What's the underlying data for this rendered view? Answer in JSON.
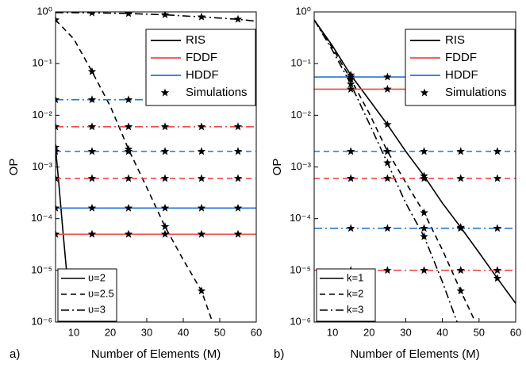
{
  "chart_data": [
    {
      "type": "line",
      "panel_label": "a)",
      "xlabel": "Number of Elements (M)",
      "ylabel": "OP",
      "xlim": [
        5,
        60
      ],
      "xticks": [
        10,
        20,
        30,
        40,
        50,
        60
      ],
      "ylim": [
        1e-06,
        1
      ],
      "yscale": "log",
      "yticks": [
        {
          "value": 1e-06,
          "label": "10⁻⁶"
        },
        {
          "value": 1e-05,
          "label": "10⁻⁵"
        },
        {
          "value": 0.0001,
          "label": "10⁻⁴"
        },
        {
          "value": 0.001,
          "label": "10⁻³"
        },
        {
          "value": 0.01,
          "label": "10⁻²"
        },
        {
          "value": 0.1,
          "label": "10⁻¹"
        },
        {
          "value": 1,
          "label": "10⁰"
        }
      ],
      "legend": {
        "position": "upper right",
        "entries": [
          {
            "label": "RIS",
            "color": "#000000",
            "marker": "line"
          },
          {
            "label": "FDDF",
            "color": "#f04848",
            "marker": "line"
          },
          {
            "label": "HDDF",
            "color": "#2673d9",
            "marker": "line"
          },
          {
            "label": "Simulations",
            "color": "#000000",
            "marker": "star"
          }
        ]
      },
      "style_legend": {
        "position": "lower left",
        "entries": [
          {
            "label": "υ=2",
            "dash": "solid"
          },
          {
            "label": "υ=2.5",
            "dash": "dashed"
          },
          {
            "label": "υ=3",
            "dash": "dashdot"
          }
        ]
      },
      "series": [
        {
          "color": "#000000",
          "dash": "solid",
          "x": [
            5,
            6,
            7,
            8,
            9,
            9.6
          ],
          "values": [
            0.0024,
            0.0004,
            6e-05,
            1e-05,
            2.5e-06,
            1e-06
          ]
        },
        {
          "color": "#000000",
          "dash": "dashed",
          "x": [
            5,
            10,
            15,
            20,
            25,
            30,
            35,
            40,
            45,
            48
          ],
          "values": [
            0.7,
            0.3,
            0.07,
            0.015,
            0.0022,
            0.0004,
            7e-05,
            1.6e-05,
            4e-06,
            1e-06
          ]
        },
        {
          "color": "#000000",
          "dash": "dashdot",
          "x": [
            5,
            15,
            25,
            35,
            45,
            55,
            60
          ],
          "values": [
            0.97,
            0.96,
            0.93,
            0.88,
            0.8,
            0.72,
            0.66
          ]
        },
        {
          "color": "#f04848",
          "dash": "solid",
          "x": [
            5,
            60
          ],
          "values": [
            5e-05,
            5e-05
          ]
        },
        {
          "color": "#f04848",
          "dash": "dashed",
          "x": [
            5,
            60
          ],
          "values": [
            0.0006,
            0.0006
          ]
        },
        {
          "color": "#f04848",
          "dash": "dashdot",
          "x": [
            5,
            60
          ],
          "values": [
            0.006,
            0.006
          ]
        },
        {
          "color": "#2673d9",
          "dash": "solid",
          "x": [
            5,
            60
          ],
          "values": [
            0.00016,
            0.00016
          ]
        },
        {
          "color": "#2673d9",
          "dash": "dashed",
          "x": [
            5,
            60
          ],
          "values": [
            0.002,
            0.002
          ]
        },
        {
          "color": "#2673d9",
          "dash": "dashdot",
          "x": [
            5,
            60
          ],
          "values": [
            0.02,
            0.02
          ]
        },
        {
          "color": "#000000",
          "dash": "none",
          "marker": "star",
          "x": [
            5,
            10
          ],
          "values": [
            0.0024,
            1e-06
          ]
        },
        {
          "color": "#000000",
          "dash": "none",
          "marker": "star",
          "x": [
            5,
            15,
            25,
            35,
            45
          ],
          "values": [
            0.7,
            0.07,
            0.0022,
            7e-05,
            4e-06
          ]
        },
        {
          "color": "#000000",
          "dash": "none",
          "marker": "star",
          "x": [
            15,
            25,
            35,
            45,
            55
          ],
          "values": [
            0.96,
            0.93,
            0.88,
            0.8,
            0.72
          ]
        },
        {
          "color": "#000000",
          "dash": "none",
          "marker": "star",
          "x": [
            5,
            15,
            25,
            35,
            45,
            55
          ],
          "values": [
            5e-05,
            5e-05,
            5e-05,
            5e-05,
            5e-05,
            5e-05
          ]
        },
        {
          "color": "#000000",
          "dash": "none",
          "marker": "star",
          "x": [
            5,
            15,
            25,
            35,
            45,
            55
          ],
          "values": [
            0.0006,
            0.0006,
            0.0006,
            0.0006,
            0.0006,
            0.0006
          ]
        },
        {
          "color": "#000000",
          "dash": "none",
          "marker": "star",
          "x": [
            5,
            15,
            25,
            35,
            45,
            55
          ],
          "values": [
            0.006,
            0.006,
            0.006,
            0.006,
            0.006,
            0.006
          ]
        },
        {
          "color": "#000000",
          "dash": "none",
          "marker": "star",
          "x": [
            5,
            15,
            25,
            35,
            45,
            55
          ],
          "values": [
            0.00016,
            0.00016,
            0.00016,
            0.00016,
            0.00016,
            0.00016
          ]
        },
        {
          "color": "#000000",
          "dash": "none",
          "marker": "star",
          "x": [
            5,
            15,
            25,
            35,
            45,
            55
          ],
          "values": [
            0.002,
            0.002,
            0.002,
            0.002,
            0.002,
            0.002
          ]
        },
        {
          "color": "#000000",
          "dash": "none",
          "marker": "star",
          "x": [
            5,
            15,
            25,
            35,
            45,
            55
          ],
          "values": [
            0.02,
            0.02,
            0.02,
            0.02,
            0.02,
            0.02
          ]
        }
      ]
    },
    {
      "type": "line",
      "panel_label": "b)",
      "xlabel": "Number of Elements (M)",
      "ylabel": "OP",
      "xlim": [
        5,
        60
      ],
      "xticks": [
        10,
        20,
        30,
        40,
        50,
        60
      ],
      "ylim": [
        1e-06,
        1
      ],
      "yscale": "log",
      "yticks": [
        {
          "value": 1e-06,
          "label": "10⁻⁶"
        },
        {
          "value": 1e-05,
          "label": "10⁻⁵"
        },
        {
          "value": 0.0001,
          "label": "10⁻⁴"
        },
        {
          "value": 0.001,
          "label": "10⁻³"
        },
        {
          "value": 0.01,
          "label": "10⁻²"
        },
        {
          "value": 0.1,
          "label": "10⁻¹"
        },
        {
          "value": 1,
          "label": "10⁰"
        }
      ],
      "legend": {
        "position": "upper right",
        "entries": [
          {
            "label": "RIS",
            "color": "#000000",
            "marker": "line"
          },
          {
            "label": "FDDF",
            "color": "#f04848",
            "marker": "line"
          },
          {
            "label": "HDDF",
            "color": "#2673d9",
            "marker": "line"
          },
          {
            "label": "Simulations",
            "color": "#000000",
            "marker": "star"
          }
        ]
      },
      "style_legend": {
        "position": "lower left",
        "entries": [
          {
            "label": "k=1",
            "dash": "solid"
          },
          {
            "label": "k=2",
            "dash": "dashed"
          },
          {
            "label": "k=3",
            "dash": "dashdot"
          }
        ]
      },
      "series": [
        {
          "color": "#000000",
          "dash": "solid",
          "x": [
            5,
            10,
            15,
            20,
            25,
            30,
            35,
            40,
            45,
            50,
            55,
            60
          ],
          "values": [
            0.7,
            0.22,
            0.06,
            0.02,
            0.0066,
            0.002,
            0.00067,
            0.0002,
            6.8e-05,
            2.2e-05,
            7e-06,
            2.3e-06
          ]
        },
        {
          "color": "#000000",
          "dash": "dashed",
          "x": [
            5,
            10,
            15,
            20,
            25,
            30,
            35,
            40,
            45,
            49
          ],
          "values": [
            0.7,
            0.2,
            0.05,
            0.011,
            0.002,
            0.0005,
            0.00013,
            2.5e-05,
            4e-06,
            1e-06
          ]
        },
        {
          "color": "#000000",
          "dash": "dashdot",
          "x": [
            5,
            10,
            15,
            20,
            25,
            30,
            35,
            40,
            44
          ],
          "values": [
            0.7,
            0.18,
            0.04,
            0.007,
            0.0012,
            0.0002,
            4.5e-05,
            6e-06,
            1e-06
          ]
        },
        {
          "color": "#f04848",
          "dash": "solid",
          "x": [
            5,
            60
          ],
          "values": [
            0.032,
            0.032
          ]
        },
        {
          "color": "#f04848",
          "dash": "dashed",
          "x": [
            5,
            60
          ],
          "values": [
            0.0006,
            0.0006
          ]
        },
        {
          "color": "#f04848",
          "dash": "dashdot",
          "x": [
            5,
            60
          ],
          "values": [
            1e-05,
            1e-05
          ]
        },
        {
          "color": "#2673d9",
          "dash": "solid",
          "x": [
            5,
            60
          ],
          "values": [
            0.055,
            0.055
          ]
        },
        {
          "color": "#2673d9",
          "dash": "dashed",
          "x": [
            5,
            60
          ],
          "values": [
            0.002,
            0.002
          ]
        },
        {
          "color": "#2673d9",
          "dash": "dashdot",
          "x": [
            5,
            60
          ],
          "values": [
            6.5e-05,
            6.5e-05
          ]
        },
        {
          "color": "#000000",
          "dash": "none",
          "marker": "star",
          "x": [
            15,
            25,
            35,
            45,
            55
          ],
          "values": [
            0.06,
            0.0066,
            0.00067,
            6.8e-05,
            7e-06
          ]
        },
        {
          "color": "#000000",
          "dash": "none",
          "marker": "star",
          "x": [
            15,
            25,
            35,
            45
          ],
          "values": [
            0.05,
            0.002,
            0.00013,
            4e-06
          ]
        },
        {
          "color": "#000000",
          "dash": "none",
          "marker": "star",
          "x": [
            15,
            25,
            35
          ],
          "values": [
            0.04,
            0.0012,
            4.5e-05
          ]
        },
        {
          "color": "#000000",
          "dash": "none",
          "marker": "star",
          "x": [
            15,
            25,
            35,
            45,
            55
          ],
          "values": [
            0.032,
            0.032,
            0.032,
            0.032,
            0.032
          ]
        },
        {
          "color": "#000000",
          "dash": "none",
          "marker": "star",
          "x": [
            15,
            25,
            35,
            45,
            55
          ],
          "values": [
            0.0006,
            0.0006,
            0.0006,
            0.0006,
            0.0006
          ]
        },
        {
          "color": "#000000",
          "dash": "none",
          "marker": "star",
          "x": [
            15,
            25,
            35,
            45,
            55
          ],
          "values": [
            1e-05,
            1e-05,
            1e-05,
            1e-05,
            1e-05
          ]
        },
        {
          "color": "#000000",
          "dash": "none",
          "marker": "star",
          "x": [
            15,
            25,
            35,
            45,
            55
          ],
          "values": [
            0.055,
            0.055,
            0.055,
            0.055,
            0.055
          ]
        },
        {
          "color": "#000000",
          "dash": "none",
          "marker": "star",
          "x": [
            15,
            25,
            35,
            45,
            55
          ],
          "values": [
            0.002,
            0.002,
            0.002,
            0.002,
            0.002
          ]
        },
        {
          "color": "#000000",
          "dash": "none",
          "marker": "star",
          "x": [
            15,
            25,
            35,
            45,
            55
          ],
          "values": [
            6.5e-05,
            6.5e-05,
            6.5e-05,
            6.5e-05,
            6.5e-05
          ]
        }
      ]
    }
  ]
}
